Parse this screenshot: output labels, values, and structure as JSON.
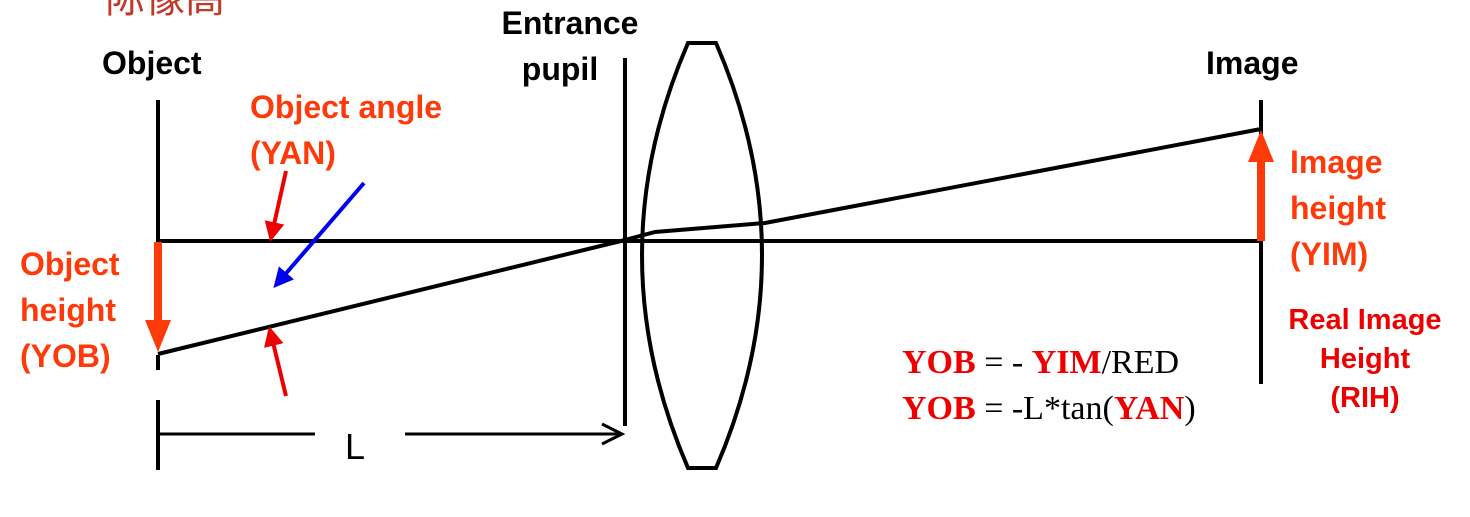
{
  "top_partial_text": "际像高",
  "labels": {
    "object": "Object",
    "entrance_pupil_line1": "Entrance",
    "entrance_pupil_line2": "pupil",
    "image": "Image",
    "object_angle_line1": "Object angle",
    "object_angle_line2": "(YAN)",
    "object_height_line1": "Object",
    "object_height_line2": "height",
    "object_height_line3": "(YOB)",
    "image_height_line1": "Image",
    "image_height_line2": "height",
    "image_height_line3": "(YIM)",
    "real_image_line1": "Real Image",
    "real_image_line2": "Height",
    "real_image_line3": "(RIH)",
    "distance": "L"
  },
  "formulas": [
    {
      "var": "YOB",
      "eq": " = - ",
      "var2": "YIM",
      "rest": "/RED",
      "tail": ""
    },
    {
      "var": "YOB",
      "eq": " = -L*tan(",
      "var2": "YAN",
      "rest": "",
      "tail": ")"
    }
  ],
  "colors": {
    "line": "#000000",
    "highlight_orange": "#ff3a0a",
    "highlight_red": "#ee0000",
    "pointer_blue": "#0000ee"
  }
}
